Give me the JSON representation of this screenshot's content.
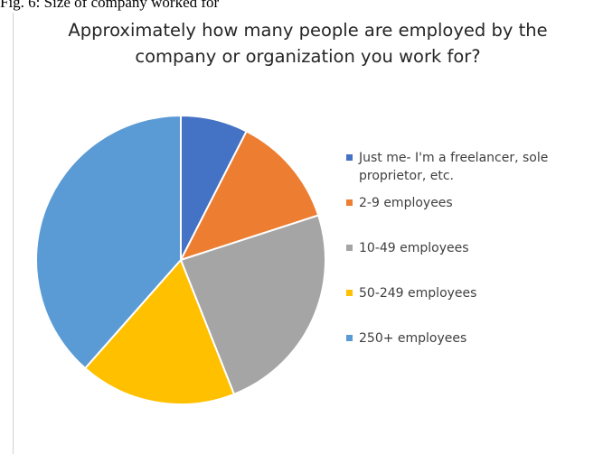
{
  "caption": "Fig. 6: Size of company worked for",
  "chart_data": {
    "type": "pie",
    "title_lines": [
      "Approximately how many people are employed by the",
      "company or organization you work for?"
    ],
    "categories": [
      "Just me- I'm a freelancer, sole proprietor, etc.",
      "2-9 employees",
      "10-49 employees",
      "50-249 employees",
      "250+ employees"
    ],
    "values": [
      7.5,
      12.5,
      24,
      17.5,
      38.5
    ],
    "colors": [
      "#4472c4",
      "#ed7d31",
      "#a5a5a5",
      "#ffc000",
      "#5b9bd5"
    ],
    "legend_position": "right",
    "start_angle": "12 o'clock",
    "direction": "clockwise"
  }
}
